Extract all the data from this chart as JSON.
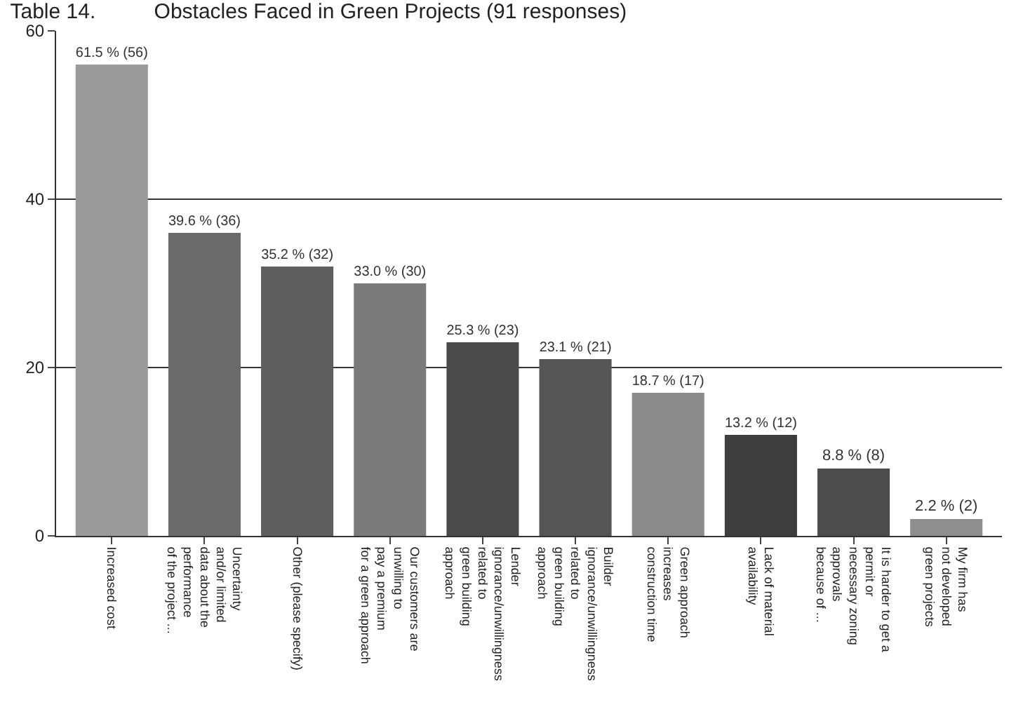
{
  "chart_data": {
    "type": "bar",
    "title": "Table 14.          Obstacles Faced in Green Projects (91 responses)",
    "categories": [
      "Increased cost",
      "Uncertainty\nand/or limited\ndata about the\nperformance\nof the project ...",
      "Other (please specify)",
      "Our customers are\nunwilling to\npay a premium\nfor a green approach",
      "Lender\nignorance/unwillingness\nrelated to\ngreen building\napproach",
      "Builder\nignorance/unwillingness\nrelated to\ngreen building\napproach",
      "Green approach\nincreases\nconstruction time",
      "Lack of material\navailability",
      "It is harder to get a\npermit or\nnecessary zoning\napprovals\nbecause of ...",
      "My firm has\nnot developed\ngreen projects"
    ],
    "values": [
      56,
      36,
      32,
      30,
      23,
      21,
      17,
      12,
      8,
      2
    ],
    "value_labels": [
      "61.5 % (56)",
      "39.6 % (36)",
      "35.2 % (32)",
      "33.0 % (30)",
      "25.3 % (23)",
      "23.1 % (21)",
      "18.7 % (17)",
      "13.2 % (12)",
      "8.8 % (8)",
      "2.2 % (2)"
    ],
    "colors": [
      "#9a9a9a",
      "#6a6a6a",
      "#5e5e5e",
      "#7a7a7a",
      "#4a4a4a",
      "#555555",
      "#8a8a8a",
      "#3e3e3e",
      "#4c4c4c",
      "#8e8e8e"
    ],
    "ylim": [
      0,
      60
    ],
    "yticks": [
      0,
      20,
      40,
      60
    ],
    "grid": "y",
    "legend": false
  }
}
